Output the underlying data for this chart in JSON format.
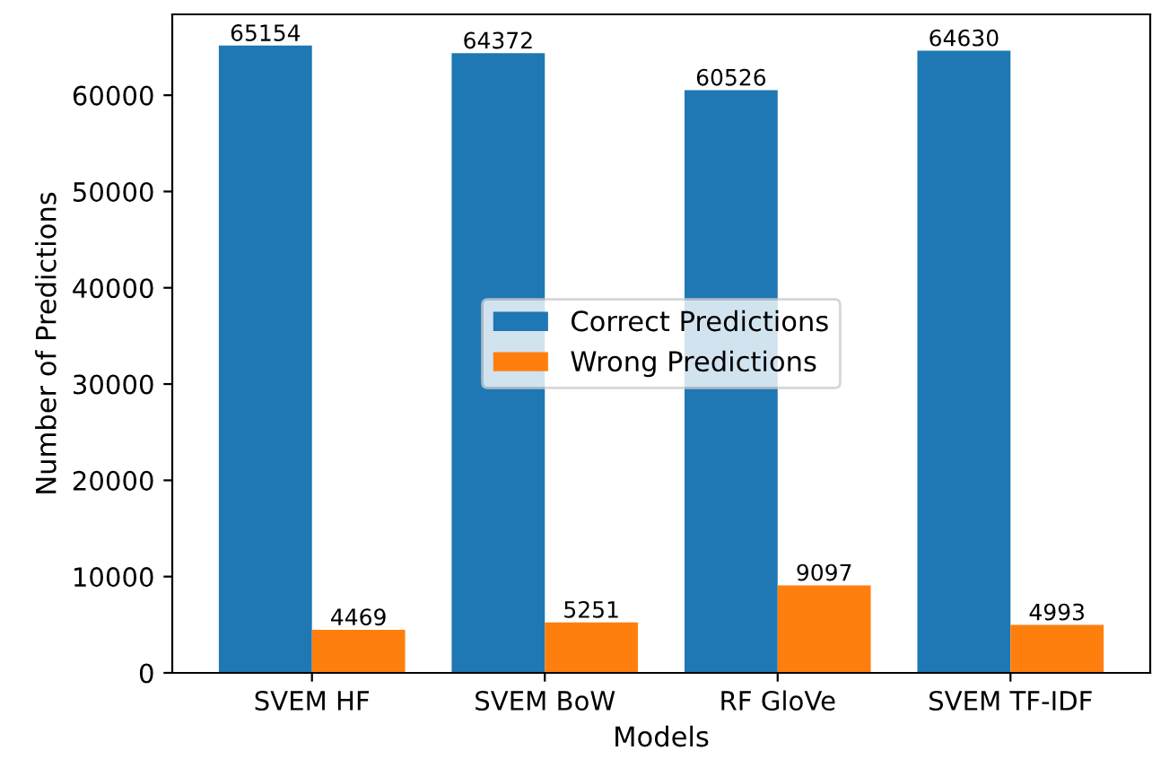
{
  "chart_data": {
    "type": "bar",
    "xlabel": "Models",
    "ylabel": "Number of Predictions",
    "categories": [
      "SVEM HF",
      "SVEM BoW",
      "RF GloVe",
      "SVEM TF-IDF"
    ],
    "series": [
      {
        "name": "Correct Predictions",
        "color": "#1f77b4",
        "values": [
          65154,
          64372,
          60526,
          64630
        ]
      },
      {
        "name": "Wrong Predictions",
        "color": "#ff7f0e",
        "values": [
          4469,
          5251,
          9097,
          4993
        ]
      }
    ],
    "ylim": [
      0,
      68400
    ],
    "yticks": [
      0,
      10000,
      20000,
      30000,
      40000,
      50000,
      60000
    ],
    "data_labels": true,
    "legend": "center",
    "grid": false
  }
}
